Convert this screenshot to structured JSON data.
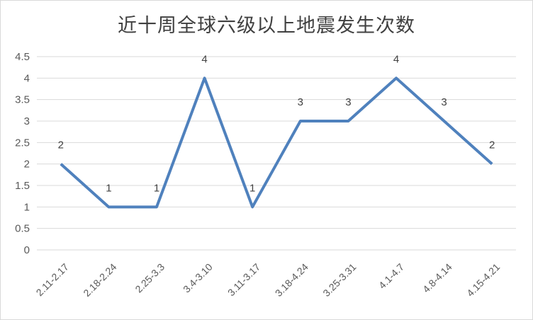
{
  "chart_data": {
    "type": "line",
    "title": "近十周全球六级以上地震发生次数",
    "categories": [
      "2.11-2.17",
      "2.18-2.24",
      "2.25-3.3",
      "3.4-3.10",
      "3.11-3.17",
      "3.18-4.24",
      "3.25-3.31",
      "4.1-4.7",
      "4.8-4.14",
      "4.15-4.21"
    ],
    "values": [
      2,
      1,
      1,
      4,
      1,
      3,
      3,
      4,
      3,
      2
    ],
    "data_labels": [
      "2",
      "1",
      "1",
      "4",
      "1",
      "3",
      "3",
      "4",
      "3",
      "2"
    ],
    "ylim": [
      0,
      4.5
    ],
    "yticks": [
      "0",
      "0.5",
      "1",
      "1.5",
      "2",
      "2.5",
      "3",
      "3.5",
      "4",
      "4.5"
    ],
    "grid": true,
    "legend": "none",
    "line_color": "#4f81bd",
    "grid_color": "#d9d9d9"
  }
}
